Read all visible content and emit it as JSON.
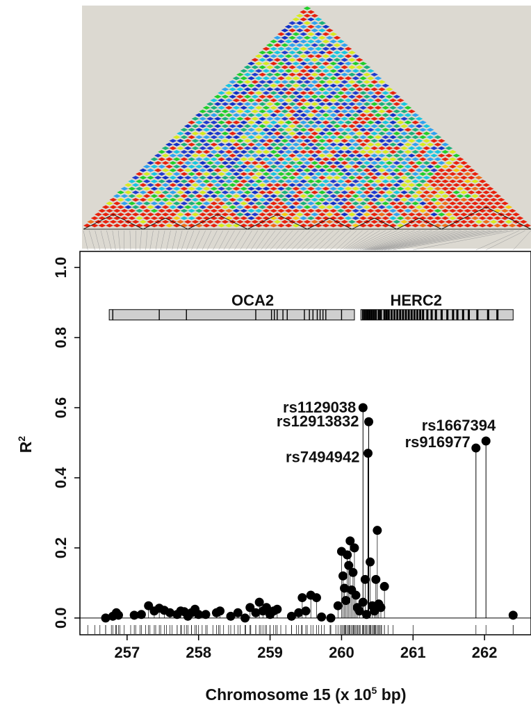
{
  "chart_data": {
    "type": "scatter",
    "xlabel_prefix": "Chromosome 15 (x 10",
    "xlabel_exp": "5",
    "xlabel_suffix": " bp)",
    "ylabel_base": "R",
    "ylabel_exp": "2",
    "xlim": [
      256.35,
      262.65
    ],
    "ylim": [
      -0.03,
      1.03
    ],
    "x_ticks": [
      257,
      258,
      259,
      260,
      261,
      262
    ],
    "y_ticks": [
      0.0,
      0.2,
      0.4,
      0.6,
      0.8,
      1.0
    ],
    "x_tick_labels": [
      "257",
      "258",
      "259",
      "260",
      "261",
      "262"
    ],
    "y_tick_labels": [
      "0.0",
      "0.2",
      "0.4",
      "0.6",
      "0.8",
      "1.0"
    ],
    "grid": false,
    "reference_line_y": 0.0,
    "genes": [
      {
        "name": "OCA2",
        "start": 256.75,
        "end": 260.18,
        "exons": [
          256.8,
          257.45,
          257.83,
          258.8,
          259.02,
          259.06,
          259.1,
          259.18,
          259.24,
          259.48,
          259.55,
          259.6,
          259.66,
          259.7,
          259.74,
          259.78,
          260.0
        ]
      },
      {
        "name": "HERC2",
        "start": 260.27,
        "end": 262.4,
        "exons": [
          260.3,
          260.33,
          260.36,
          260.39,
          260.42,
          260.45,
          260.48,
          260.52,
          260.55,
          260.6,
          260.63,
          260.66,
          260.7,
          260.74,
          260.78,
          260.82,
          260.86,
          260.9,
          260.94,
          260.98,
          261.02,
          261.06,
          261.1,
          261.14,
          261.2,
          261.26,
          261.32,
          261.4,
          261.48,
          261.56,
          261.62,
          261.7,
          261.78,
          261.9,
          262.05,
          262.18
        ]
      }
    ],
    "labeled_snps": [
      {
        "name": "rs1129038",
        "x": 260.3,
        "y": 0.6
      },
      {
        "name": "rs12913832",
        "x": 260.38,
        "y": 0.56
      },
      {
        "name": "rs7494942",
        "x": 260.37,
        "y": 0.47
      },
      {
        "name": "rs916977",
        "x": 261.88,
        "y": 0.485
      },
      {
        "name": "rs1667394",
        "x": 262.02,
        "y": 0.505
      }
    ],
    "points": [
      [
        256.7,
        0.0
      ],
      [
        256.8,
        0.005
      ],
      [
        256.85,
        0.015
      ],
      [
        256.88,
        0.008
      ],
      [
        257.1,
        0.008
      ],
      [
        257.2,
        0.01
      ],
      [
        257.3,
        0.035
      ],
      [
        257.38,
        0.02
      ],
      [
        257.45,
        0.028
      ],
      [
        257.52,
        0.022
      ],
      [
        257.6,
        0.015
      ],
      [
        257.7,
        0.01
      ],
      [
        257.75,
        0.02
      ],
      [
        257.8,
        0.018
      ],
      [
        257.85,
        0.005
      ],
      [
        257.9,
        0.015
      ],
      [
        257.95,
        0.025
      ],
      [
        258.0,
        0.01
      ],
      [
        258.1,
        0.01
      ],
      [
        258.25,
        0.015
      ],
      [
        258.3,
        0.02
      ],
      [
        258.45,
        0.005
      ],
      [
        258.55,
        0.015
      ],
      [
        258.65,
        0.0
      ],
      [
        258.72,
        0.03
      ],
      [
        258.8,
        0.015
      ],
      [
        258.85,
        0.045
      ],
      [
        258.9,
        0.02
      ],
      [
        258.95,
        0.03
      ],
      [
        259.0,
        0.01
      ],
      [
        259.05,
        0.02
      ],
      [
        259.1,
        0.025
      ],
      [
        259.3,
        0.005
      ],
      [
        259.4,
        0.015
      ],
      [
        259.45,
        0.058
      ],
      [
        259.5,
        0.02
      ],
      [
        259.57,
        0.065
      ],
      [
        259.65,
        0.058
      ],
      [
        259.72,
        0.003
      ],
      [
        259.85,
        0.0
      ],
      [
        259.95,
        0.035
      ],
      [
        260.0,
        0.19
      ],
      [
        260.02,
        0.12
      ],
      [
        260.04,
        0.085
      ],
      [
        260.06,
        0.05
      ],
      [
        260.08,
        0.18
      ],
      [
        260.1,
        0.15
      ],
      [
        260.12,
        0.22
      ],
      [
        260.14,
        0.08
      ],
      [
        260.16,
        0.13
      ],
      [
        260.18,
        0.2
      ],
      [
        260.2,
        0.065
      ],
      [
        260.22,
        0.03
      ],
      [
        260.25,
        0.02
      ],
      [
        260.3,
        0.045
      ],
      [
        260.33,
        0.11
      ],
      [
        260.35,
        0.01
      ],
      [
        260.4,
        0.16
      ],
      [
        260.43,
        0.035
      ],
      [
        260.46,
        0.02
      ],
      [
        260.48,
        0.11
      ],
      [
        260.5,
        0.25
      ],
      [
        260.52,
        0.04
      ],
      [
        260.55,
        0.03
      ],
      [
        260.6,
        0.09
      ],
      [
        262.4,
        0.008
      ]
    ],
    "snp_positions": [
      256.45,
      256.55,
      256.62,
      256.7,
      256.78,
      256.84,
      256.9,
      256.96,
      257.05,
      257.12,
      257.18,
      257.26,
      257.32,
      257.4,
      257.47,
      257.55,
      257.63,
      257.7,
      257.76,
      257.83,
      257.9,
      257.97,
      258.05,
      258.12,
      258.2,
      258.28,
      258.35,
      258.42,
      258.5,
      258.58,
      258.66,
      258.73,
      258.8,
      258.87,
      258.93,
      259.0,
      259.08,
      259.15,
      259.22,
      259.3,
      259.37,
      259.44,
      259.52,
      259.6,
      259.68,
      259.76,
      259.84,
      259.92,
      259.98,
      260.02,
      260.05,
      260.08,
      260.11,
      260.14,
      260.17,
      260.2,
      260.23,
      260.26,
      260.29,
      260.31,
      260.33,
      260.35,
      260.37,
      260.39,
      260.41,
      260.43,
      260.45,
      260.47,
      260.5,
      260.53,
      260.56,
      260.6,
      260.65,
      260.72,
      261.0,
      261.88,
      262.02,
      262.4
    ]
  },
  "ld_heatmap": {
    "palette": [
      "#e8210c",
      "#f06a18",
      "#f7c80d",
      "#d7eb1c",
      "#1fcf2a",
      "#18b07a",
      "#16c6e0",
      "#2fa2f0",
      "#1f3bd0",
      "#1030c8"
    ],
    "background": "#dcd9d1"
  }
}
